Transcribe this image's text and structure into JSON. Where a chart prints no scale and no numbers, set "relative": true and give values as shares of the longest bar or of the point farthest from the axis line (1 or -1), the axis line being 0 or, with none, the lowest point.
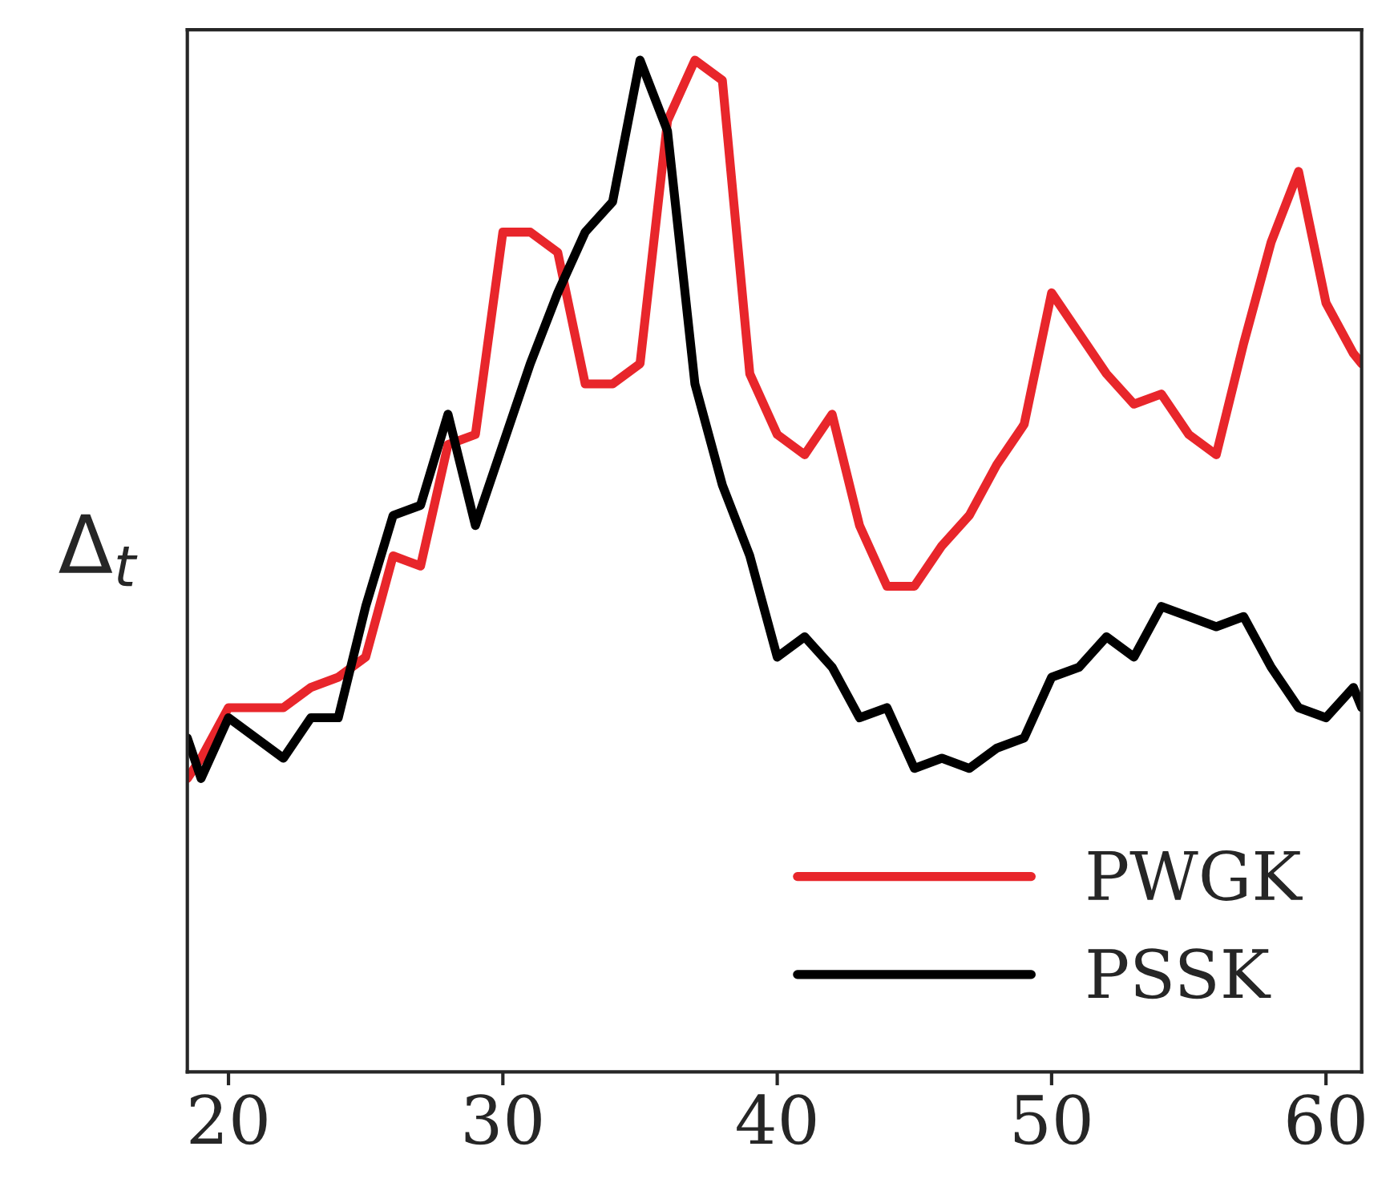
{
  "chart_data": {
    "type": "line",
    "ylabel": "Δ$_{t}$",
    "relative": true,
    "xlim": [
      18.5,
      61.3
    ],
    "xticks": [
      20,
      30,
      40,
      50,
      60
    ],
    "tick_labels": "x",
    "grid": false,
    "legend": "bottom right",
    "line_style": "solid",
    "marker": "none",
    "series": [
      {
        "name": "PWGK",
        "color": "#e8262b",
        "x": [
          18.5,
          19,
          20,
          21,
          22,
          23,
          24,
          25,
          26,
          27,
          28,
          29,
          30,
          31,
          32,
          33,
          34,
          35,
          36,
          37,
          38,
          39,
          40,
          41,
          42,
          43,
          44,
          45,
          46,
          47,
          48,
          49,
          50,
          51,
          52,
          53,
          54,
          55,
          56,
          57,
          58,
          59,
          60,
          61,
          61.3
        ],
        "values": [
          0.29,
          0.31,
          0.36,
          0.36,
          0.36,
          0.38,
          0.39,
          0.41,
          0.51,
          0.5,
          0.62,
          0.63,
          0.83,
          0.83,
          0.81,
          0.68,
          0.68,
          0.7,
          0.94,
          1.0,
          0.98,
          0.69,
          0.63,
          0.61,
          0.65,
          0.54,
          0.48,
          0.48,
          0.52,
          0.55,
          0.6,
          0.64,
          0.77,
          0.73,
          0.69,
          0.66,
          0.67,
          0.63,
          0.61,
          0.72,
          0.82,
          0.89,
          0.76,
          0.71,
          0.7
        ]
      },
      {
        "name": "PSSK",
        "color": "#000000",
        "x": [
          18.5,
          19,
          20,
          21,
          22,
          23,
          24,
          25,
          26,
          27,
          28,
          29,
          30,
          31,
          32,
          33,
          34,
          35,
          36,
          37,
          38,
          39,
          40,
          41,
          42,
          43,
          44,
          45,
          46,
          47,
          48,
          49,
          50,
          51,
          52,
          53,
          54,
          55,
          56,
          57,
          58,
          59,
          60,
          61,
          61.3
        ],
        "values": [
          0.33,
          0.29,
          0.35,
          0.33,
          0.31,
          0.35,
          0.35,
          0.46,
          0.55,
          0.56,
          0.65,
          0.54,
          0.62,
          0.7,
          0.77,
          0.83,
          0.86,
          1.0,
          0.93,
          0.68,
          0.58,
          0.51,
          0.41,
          0.43,
          0.4,
          0.35,
          0.36,
          0.3,
          0.31,
          0.3,
          0.32,
          0.33,
          0.39,
          0.4,
          0.43,
          0.41,
          0.46,
          0.45,
          0.44,
          0.45,
          0.4,
          0.36,
          0.35,
          0.38,
          0.36
        ]
      }
    ]
  }
}
